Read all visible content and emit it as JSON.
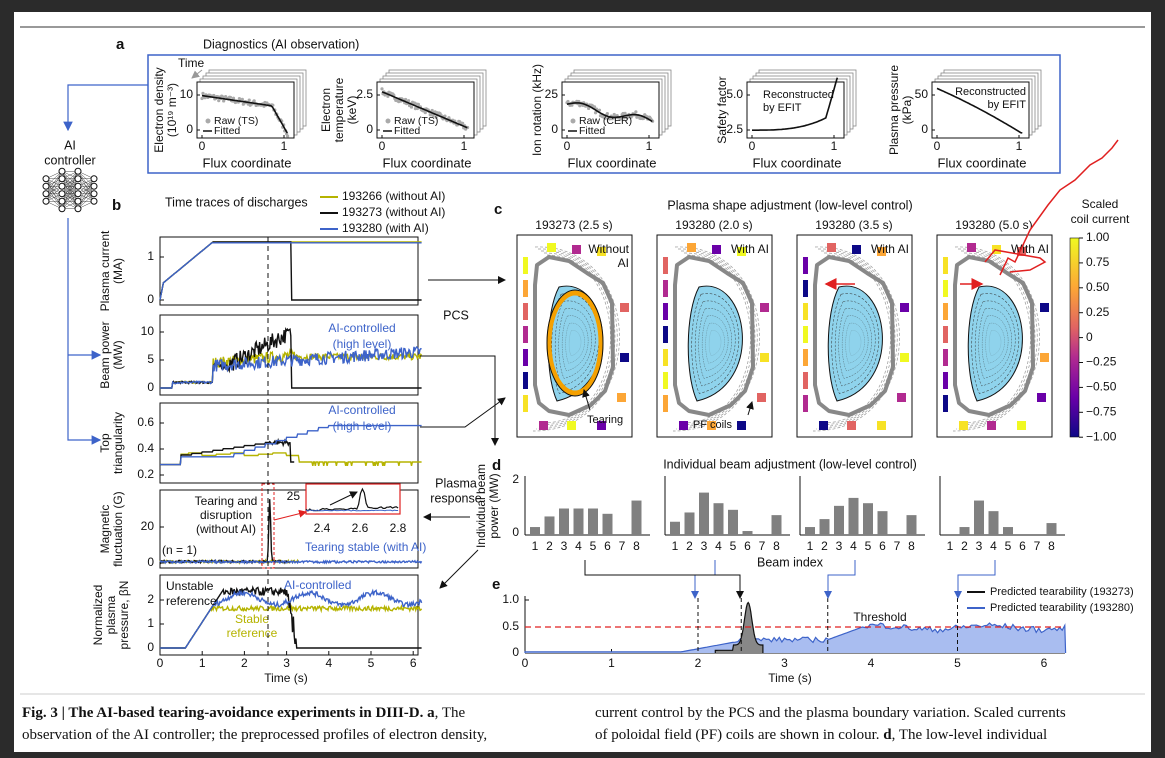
{
  "panel_labels": [
    "a",
    "b",
    "c",
    "d",
    "e"
  ],
  "panel_a": {
    "title": "Diagnostics (AI observation)",
    "time_label": "Time",
    "plots": [
      {
        "ylabel": [
          "Electron density",
          "(10¹⁹ m⁻³)"
        ],
        "yticks": [
          "10",
          "0"
        ],
        "xticks": [
          "0",
          "1"
        ],
        "x_label": "Flux coordinate",
        "legend": [
          "Raw (TS)",
          "Fitted"
        ]
      },
      {
        "ylabel": [
          "Electron",
          "temperature",
          "(keV)"
        ],
        "yticks": [
          "2.5",
          "0"
        ],
        "xticks": [
          "0",
          "1"
        ],
        "x_label": "Flux coordinate",
        "legend": [
          "Raw (TS)",
          "Fitted"
        ]
      },
      {
        "ylabel": [
          "Ion rotation (kHz)"
        ],
        "yticks": [
          "25",
          "0"
        ],
        "xticks": [
          "0",
          "1"
        ],
        "x_label": "Flux coordinate",
        "legend": [
          "Raw (CER)",
          "Fitted"
        ]
      },
      {
        "ylabel": [
          "Safety factor"
        ],
        "yticks": [
          "5.0",
          "2.5"
        ],
        "xticks": [
          "0",
          "1"
        ],
        "x_label": "Flux coordinate",
        "note": [
          "Reconstructed",
          "by EFIT"
        ]
      },
      {
        "ylabel": [
          "Plasma pressure",
          "(kPa)"
        ],
        "yticks": [
          "50",
          "0"
        ],
        "xticks": [
          "0",
          "1"
        ],
        "x_label": "Flux coordinate",
        "note": [
          "Reconstructed",
          "by EFIT"
        ]
      }
    ]
  },
  "controller": [
    "AI",
    "controller"
  ],
  "panel_b": {
    "title": "Time traces of discharges",
    "legend": [
      "193266 (without AI)",
      "193273 (without AI)",
      "193280 (with AI)"
    ],
    "plots": [
      {
        "ylabel": [
          "Plasma current",
          "(MA)"
        ],
        "yticks": [
          "1",
          "0"
        ]
      },
      {
        "ylabel": [
          "Beam power",
          "(MW)"
        ],
        "yticks": [
          "10",
          "5",
          "0"
        ],
        "annotation": [
          "AI-controlled",
          "(high level)"
        ]
      },
      {
        "ylabel": [
          "Top",
          "triangularity"
        ],
        "yticks": [
          "0.6",
          "0.4",
          "0.2"
        ],
        "annotation": [
          "AI-controlled",
          "(high level)"
        ]
      },
      {
        "ylabel": [
          "Magnetic",
          "fluctuation (G)"
        ],
        "yticks": [
          "20",
          "0"
        ],
        "tearing": [
          "Tearing and",
          "disruption",
          "(without AI)"
        ],
        "mode": "(n = 1)",
        "stable": "Tearing stable (with AI)"
      },
      {
        "ylabel": [
          "Normalized",
          "plasma",
          "pressure, βN"
        ],
        "yticks": [
          "2",
          "1",
          "0"
        ],
        "unstable": [
          "Unstable",
          "reference"
        ],
        "controlled": "AI-controlled",
        "stable": [
          "Stable",
          "reference"
        ]
      }
    ],
    "inset": {
      "yticks": [
        "25"
      ],
      "xticks": [
        "2.4",
        "2.6",
        "2.8"
      ]
    },
    "xticks": [
      "0",
      "1",
      "2",
      "3",
      "4",
      "5",
      "6"
    ],
    "x_label": "Time (s)"
  },
  "pcs": "PCS",
  "plasma_response": [
    "Plasma",
    "response"
  ],
  "panel_c": {
    "title": "Plasma shape adjustment (low-level control)",
    "plots": [
      {
        "title": "193273 (2.5 s)",
        "label": [
          "Without",
          "AI"
        ]
      },
      {
        "title": "193280 (2.0 s)",
        "label": [
          "With AI"
        ]
      },
      {
        "title": "193280 (3.5 s)",
        "label": [
          "With AI"
        ]
      },
      {
        "title": "193280 (5.0 s)",
        "label": [
          "With AI"
        ]
      }
    ],
    "tearing": "Tearing",
    "pf_coils": "PF coils",
    "colorbar": {
      "title": [
        "Scaled",
        "coil current"
      ],
      "ticks": [
        "1.00",
        "0.75",
        "0.50",
        "0.25",
        "0",
        "−0.25",
        "−0.50",
        "−0.75",
        "−1.00"
      ]
    }
  },
  "panel_d": {
    "title": "Individual beam adjustment (low-level control)",
    "ylabel": [
      "Individual beam",
      "power (MW)"
    ],
    "yticks": [
      "2",
      "0"
    ],
    "beam_indices": [
      "1",
      "2",
      "3",
      "4",
      "5",
      "6",
      "7",
      "8"
    ],
    "x_label": "Beam index"
  },
  "panel_e": {
    "yticks": [
      "1.0",
      "0.5",
      "0"
    ],
    "xticks": [
      "0",
      "1",
      "2",
      "3",
      "4",
      "5",
      "6"
    ],
    "x_label": "Time (s)",
    "threshold": "Threshold",
    "legend": [
      "Predicted tearability (193273)",
      "Predicted tearability (193280)"
    ]
  },
  "caption": {
    "left": [
      [
        {
          "text": "Fig. 3 | The AI-based tearing-avoidance experiments in DIII-D. a",
          "bold": true
        },
        {
          "text": ", The"
        }
      ],
      [
        {
          "text": "observation of the AI controller; the preprocessed profiles of electron density,"
        }
      ]
    ],
    "right": [
      [
        {
          "text": "current control by the PCS and the plasma boundary variation. Scaled currents"
        }
      ],
      [
        {
          "text": "of poloidal field (PF) coils are shown in colour. "
        },
        {
          "text": "d",
          "bold": true
        },
        {
          "text": ", The low-level individual"
        }
      ]
    ]
  }
}
